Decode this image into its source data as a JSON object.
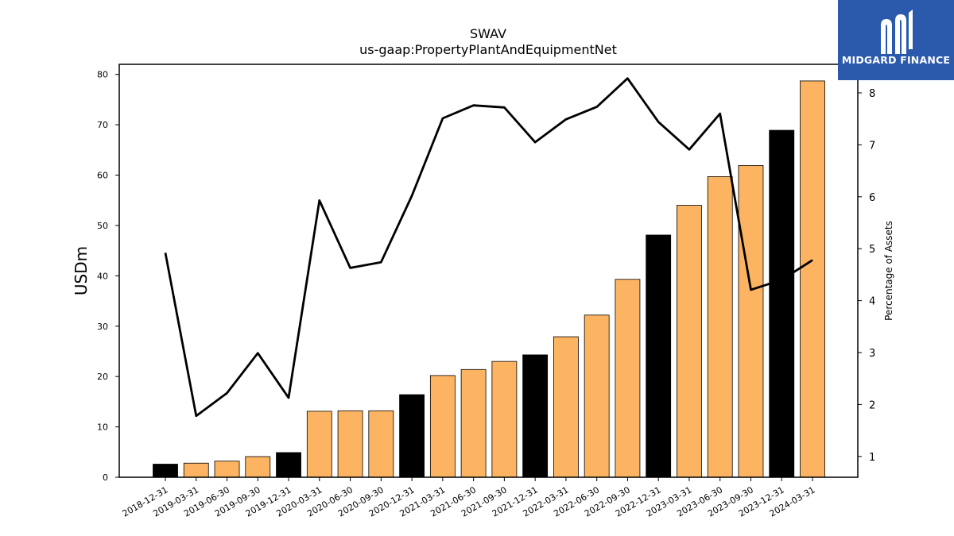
{
  "chart_data": {
    "type": "bar",
    "title": "SWAV",
    "subtitle": "us-gaap:PropertyPlantAndEquipmentNet",
    "ylabel": "USDm",
    "y2label": "Percentage of Assets",
    "ylim": [
      0,
      82
    ],
    "y2lim": [
      0.6,
      8.55
    ],
    "yticks": [
      0,
      10,
      20,
      30,
      40,
      50,
      60,
      70,
      80
    ],
    "y2ticks": [
      1,
      2,
      3,
      4,
      5,
      6,
      7,
      8
    ],
    "categories": [
      "2018-12-31",
      "2019-03-31",
      "2019-06-30",
      "2019-09-30",
      "2019-12-31",
      "2020-03-31",
      "2020-06-30",
      "2020-09-30",
      "2020-12-31",
      "2021-03-31",
      "2021-06-30",
      "2021-09-30",
      "2021-12-31",
      "2022-03-31",
      "2022-06-30",
      "2022-09-30",
      "2022-12-31",
      "2023-03-31",
      "2023-06-30",
      "2023-09-30",
      "2023-12-31",
      "2024-03-31"
    ],
    "values": [
      2.6,
      2.8,
      3.2,
      4.1,
      4.9,
      13.1,
      13.2,
      13.2,
      16.4,
      20.2,
      21.4,
      23.0,
      24.3,
      27.9,
      32.2,
      39.3,
      48.1,
      54.0,
      59.7,
      61.9,
      68.9,
      78.7
    ],
    "bar_colors": [
      "#000000",
      "#fdb462",
      "#fdb462",
      "#fdb462",
      "#000000",
      "#fdb462",
      "#fdb462",
      "#fdb462",
      "#000000",
      "#fdb462",
      "#fdb462",
      "#fdb462",
      "#000000",
      "#fdb462",
      "#fdb462",
      "#fdb462",
      "#000000",
      "#fdb462",
      "#fdb462",
      "#fdb462",
      "#000000",
      "#fdb462"
    ],
    "line_series": {
      "axis": "right",
      "color": "#000000",
      "values": [
        4.92,
        1.78,
        2.22,
        2.99,
        2.13,
        5.93,
        4.63,
        4.74,
        6.02,
        7.51,
        7.76,
        7.72,
        7.05,
        7.49,
        7.73,
        8.28,
        7.44,
        6.91,
        7.6,
        4.21,
        4.4,
        4.78
      ]
    },
    "grid": false,
    "legend": "none"
  },
  "logo": {
    "text": "MIDGARD FINANCE",
    "background": "#2b5aad",
    "icon": "midgard-m-logo-icon"
  }
}
